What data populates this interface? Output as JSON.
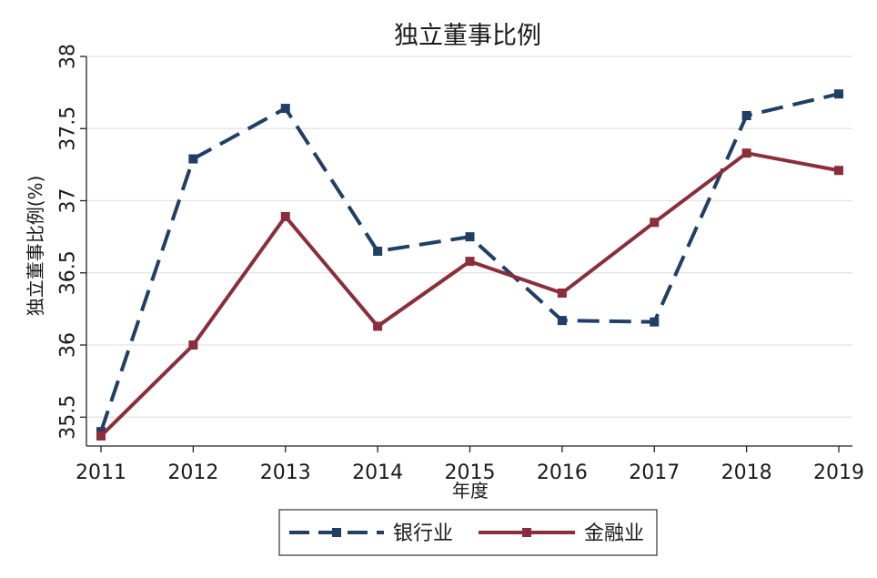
{
  "chart_data": {
    "type": "line",
    "title": "独立董事比例",
    "xlabel": "年度",
    "ylabel": "独立董事比例(%)",
    "x": [
      "2011",
      "2012",
      "2013",
      "2014",
      "2015",
      "2016",
      "2017",
      "2018",
      "2019"
    ],
    "yticks": [
      "35.5",
      "36",
      "36.5",
      "37",
      "37.5",
      "38"
    ],
    "ylim": [
      35.3,
      38.0
    ],
    "grid": true,
    "legend_position": "bottom",
    "series": [
      {
        "name": "银行业",
        "color": "#1f3f66",
        "dash": "dashed",
        "values": [
          35.4,
          37.29,
          37.64,
          36.65,
          36.75,
          36.17,
          36.16,
          37.59,
          37.74
        ]
      },
      {
        "name": "金融业",
        "color": "#8b2d3a",
        "dash": "solid",
        "values": [
          35.37,
          36.0,
          36.89,
          36.13,
          36.58,
          36.36,
          36.85,
          37.33,
          37.21
        ]
      }
    ]
  }
}
